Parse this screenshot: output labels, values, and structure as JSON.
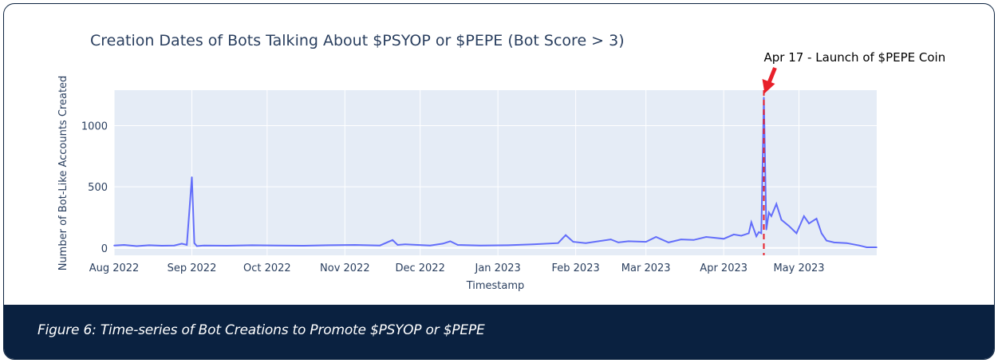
{
  "figure_caption": "Figure 6: Time-series of Bot Creations to Promote $PSYOP or $PEPE",
  "colors": {
    "plot_bg": "#e5ecf6",
    "line": "#636efa",
    "annotation": "#e8202a",
    "caption_bg": "#0a2140"
  },
  "chart_data": {
    "type": "line",
    "title": "Creation Dates of Bots Talking About $PSYOP or $PEPE (Bot Score > 3)",
    "xlabel": "Timestamp",
    "ylabel": "Number of Bot-Like Accounts Created",
    "x_ticks": [
      {
        "date": "2022-08-01",
        "label": "Aug 2022"
      },
      {
        "date": "2022-09-01",
        "label": "Sep 2022"
      },
      {
        "date": "2022-10-01",
        "label": "Oct 2022"
      },
      {
        "date": "2022-11-01",
        "label": "Nov 2022"
      },
      {
        "date": "2022-12-01",
        "label": "Dec 2022"
      },
      {
        "date": "2023-01-01",
        "label": "Jan 2023"
      },
      {
        "date": "2023-02-01",
        "label": "Feb 2023"
      },
      {
        "date": "2023-03-01",
        "label": "Mar 2023"
      },
      {
        "date": "2023-04-01",
        "label": "Apr 2023"
      },
      {
        "date": "2023-05-01",
        "label": "May 2023"
      }
    ],
    "y_ticks": [
      0,
      500,
      1000
    ],
    "xlim": [
      "2022-08-01",
      "2023-06-01"
    ],
    "ylim": [
      -60,
      1290
    ],
    "grid": true,
    "series": [
      {
        "x": [
          "2022-08-01",
          "2022-08-05",
          "2022-08-10",
          "2022-08-15",
          "2022-08-20",
          "2022-08-25",
          "2022-08-28",
          "2022-08-30",
          "2022-09-01",
          "2022-09-02",
          "2022-09-03",
          "2022-09-06",
          "2022-09-15",
          "2022-09-25",
          "2022-10-05",
          "2022-10-15",
          "2022-10-25",
          "2022-11-05",
          "2022-11-15",
          "2022-11-20",
          "2022-11-22",
          "2022-11-25",
          "2022-12-05",
          "2022-12-10",
          "2022-12-13",
          "2022-12-16",
          "2022-12-25",
          "2023-01-05",
          "2023-01-15",
          "2023-01-25",
          "2023-01-28",
          "2023-01-31",
          "2023-02-05",
          "2023-02-15",
          "2023-02-18",
          "2023-02-22",
          "2023-03-01",
          "2023-03-05",
          "2023-03-10",
          "2023-03-15",
          "2023-03-20",
          "2023-03-25",
          "2023-04-01",
          "2023-04-05",
          "2023-04-08",
          "2023-04-11",
          "2023-04-12",
          "2023-04-14",
          "2023-04-15",
          "2023-04-16",
          "2023-04-17",
          "2023-04-18",
          "2023-04-19",
          "2023-04-20",
          "2023-04-22",
          "2023-04-24",
          "2023-04-27",
          "2023-04-30",
          "2023-05-03",
          "2023-05-05",
          "2023-05-08",
          "2023-05-10",
          "2023-05-12",
          "2023-05-15",
          "2023-05-20",
          "2023-05-25",
          "2023-05-28",
          "2023-06-01"
        ],
        "values": [
          20,
          25,
          15,
          22,
          18,
          20,
          35,
          25,
          580,
          40,
          15,
          20,
          18,
          22,
          20,
          18,
          22,
          25,
          20,
          65,
          25,
          30,
          20,
          35,
          55,
          25,
          20,
          22,
          30,
          40,
          105,
          50,
          40,
          70,
          45,
          55,
          50,
          90,
          45,
          70,
          65,
          90,
          75,
          110,
          100,
          120,
          210,
          95,
          130,
          120,
          1230,
          150,
          290,
          260,
          360,
          230,
          180,
          120,
          260,
          200,
          240,
          120,
          60,
          45,
          40,
          20,
          5,
          5
        ]
      }
    ],
    "annotations": [
      {
        "date": "2023-04-17",
        "text": "Apr 17 - Launch of $PEPE Coin"
      }
    ]
  }
}
